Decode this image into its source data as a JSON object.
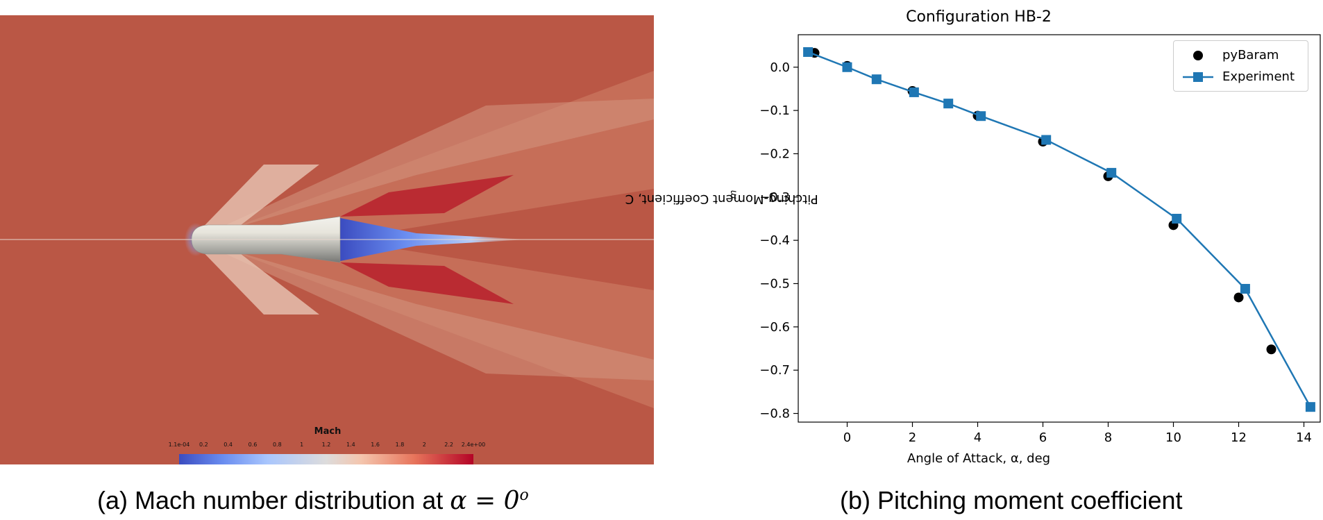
{
  "panel_a": {
    "colorbar_title": "Mach",
    "colorbar_ticks": [
      "1.1e-04",
      "0.2",
      "0.4",
      "0.6",
      "0.8",
      "1",
      "1.2",
      "1.4",
      "1.6",
      "1.8",
      "2",
      "2.2",
      "2.4e+00"
    ],
    "colormap": {
      "low": "#3b4cc0",
      "mid": "#dddcdc",
      "high": "#b40426",
      "freestream": "#ba5745"
    }
  },
  "captions": {
    "a_text": "(a) Mach number distribution at ",
    "a_math": "α = 0",
    "a_sup": "o",
    "b_text": "(b) Pitching moment coefficient"
  },
  "chart_data": {
    "type": "line",
    "title": "Configuration HB-2",
    "xlabel": "Angle of Attack, α, deg",
    "ylabel_main": "Pitching-Moment Coefficient, C",
    "ylabel_sub": "m",
    "xlim": [
      -1.5,
      14.5
    ],
    "ylim": [
      -0.82,
      0.075
    ],
    "xticks": [
      0,
      2,
      4,
      6,
      8,
      10,
      12,
      14
    ],
    "yticks": [
      0.0,
      -0.1,
      -0.2,
      -0.3,
      -0.4,
      -0.5,
      -0.6,
      -0.7,
      -0.8
    ],
    "ytick_labels": [
      "0.0",
      "−0.1",
      "−0.2",
      "−0.3",
      "−0.4",
      "−0.5",
      "−0.6",
      "−0.7",
      "−0.8"
    ],
    "grid": false,
    "legend_position": "top-right",
    "series": [
      {
        "name": "pyBaram",
        "style": "markers",
        "marker": "circle",
        "color": "#000000",
        "x": [
          -1,
          0,
          2,
          4,
          6,
          8,
          10,
          12,
          13
        ],
        "y": [
          0.033,
          0.003,
          -0.055,
          -0.112,
          -0.172,
          -0.252,
          -0.365,
          -0.532,
          -0.652
        ]
      },
      {
        "name": "Experiment",
        "style": "line+markers",
        "marker": "square",
        "color": "#1f77b4",
        "x": [
          -1.2,
          0,
          0.9,
          2.05,
          3.1,
          4.1,
          6.1,
          8.1,
          10.1,
          12.2,
          14.2
        ],
        "y": [
          0.035,
          0.0,
          -0.028,
          -0.058,
          -0.084,
          -0.113,
          -0.168,
          -0.244,
          -0.35,
          -0.512,
          -0.785
        ]
      }
    ]
  }
}
